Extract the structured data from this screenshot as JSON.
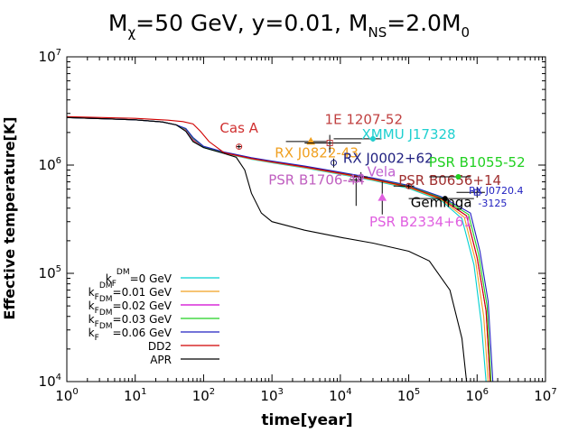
{
  "chart_data": {
    "type": "line",
    "title": {
      "parts": [
        {
          "t": "M",
          "s": "n"
        },
        {
          "t": "χ",
          "s": "sub"
        },
        {
          "t": "=50 GeV, y=0.01, M",
          "s": "n"
        },
        {
          "t": "NS",
          "s": "sub"
        },
        {
          "t": "=2.0M",
          "s": "n"
        },
        {
          "t": "0",
          "s": "sub"
        }
      ]
    },
    "xlabel": "time[year]",
    "ylabel": "Effective temperature[K]",
    "x_scale": "log",
    "y_scale": "log",
    "xlim": [
      1,
      10000000
    ],
    "ylim": [
      10000,
      10000000
    ],
    "x_ticks": [
      {
        "v": 1,
        "base": "10",
        "exp": "0"
      },
      {
        "v": 10,
        "base": "10",
        "exp": "1"
      },
      {
        "v": 100,
        "base": "10",
        "exp": "2"
      },
      {
        "v": 1000,
        "base": "10",
        "exp": "3"
      },
      {
        "v": 10000,
        "base": "10",
        "exp": "4"
      },
      {
        "v": 100000,
        "base": "10",
        "exp": "5"
      },
      {
        "v": 1000000,
        "base": "10",
        "exp": "6"
      },
      {
        "v": 10000000,
        "base": "10",
        "exp": "7"
      }
    ],
    "y_ticks": [
      {
        "v": 10000,
        "base": "10",
        "exp": "4"
      },
      {
        "v": 100000,
        "base": "10",
        "exp": "5"
      },
      {
        "v": 1000000,
        "base": "10",
        "exp": "6"
      },
      {
        "v": 10000000,
        "base": "10",
        "exp": "7"
      }
    ],
    "series": [
      {
        "name_main": "k",
        "name_sub": "F",
        "name_sup": "DM",
        "name_rest": "=0 GeV",
        "color": "#00d0d0",
        "points": [
          [
            1,
            2750000
          ],
          [
            10,
            2620000
          ],
          [
            25,
            2500000
          ],
          [
            40,
            2350000
          ],
          [
            55,
            2050000
          ],
          [
            70,
            1650000
          ],
          [
            100,
            1450000
          ],
          [
            200,
            1280000
          ],
          [
            500,
            1130000
          ],
          [
            1000,
            1050000
          ],
          [
            3000,
            940000
          ],
          [
            10000,
            820000
          ],
          [
            30000,
            720000
          ],
          [
            100000,
            610000
          ],
          [
            300000,
            470000
          ],
          [
            600000,
            320000
          ],
          [
            900000,
            120000
          ],
          [
            1150000,
            35000
          ],
          [
            1350000,
            10000
          ]
        ]
      },
      {
        "name_main": "k",
        "name_sub": "F",
        "name_sup": "DM",
        "name_rest": "=0.01 GeV",
        "color": "#f0a020",
        "points": [
          [
            1,
            2750000
          ],
          [
            10,
            2620000
          ],
          [
            25,
            2500000
          ],
          [
            40,
            2350000
          ],
          [
            55,
            2080000
          ],
          [
            70,
            1680000
          ],
          [
            100,
            1460000
          ],
          [
            200,
            1290000
          ],
          [
            500,
            1140000
          ],
          [
            1000,
            1060000
          ],
          [
            3000,
            950000
          ],
          [
            10000,
            830000
          ],
          [
            30000,
            730000
          ],
          [
            100000,
            620000
          ],
          [
            300000,
            480000
          ],
          [
            650000,
            330000
          ],
          [
            950000,
            130000
          ],
          [
            1250000,
            40000
          ],
          [
            1450000,
            10000
          ]
        ]
      },
      {
        "name_main": "k",
        "name_sub": "F",
        "name_sup": "DM",
        "name_rest": "=0.02 GeV",
        "color": "#d000d0",
        "points": [
          [
            1,
            2750000
          ],
          [
            10,
            2620000
          ],
          [
            25,
            2500000
          ],
          [
            40,
            2350000
          ],
          [
            55,
            2120000
          ],
          [
            70,
            1720000
          ],
          [
            100,
            1470000
          ],
          [
            200,
            1300000
          ],
          [
            500,
            1150000
          ],
          [
            1000,
            1070000
          ],
          [
            3000,
            960000
          ],
          [
            10000,
            840000
          ],
          [
            30000,
            740000
          ],
          [
            100000,
            630000
          ],
          [
            300000,
            490000
          ],
          [
            700000,
            340000
          ],
          [
            1000000,
            140000
          ],
          [
            1350000,
            45000
          ],
          [
            1550000,
            10000
          ]
        ]
      },
      {
        "name_main": "k",
        "name_sub": "F",
        "name_sup": "DM",
        "name_rest": "=0.03 GeV",
        "color": "#20d020",
        "points": [
          [
            1,
            2750000
          ],
          [
            10,
            2620000
          ],
          [
            25,
            2500000
          ],
          [
            40,
            2350000
          ],
          [
            55,
            2150000
          ],
          [
            70,
            1760000
          ],
          [
            100,
            1480000
          ],
          [
            200,
            1310000
          ],
          [
            500,
            1160000
          ],
          [
            1000,
            1080000
          ],
          [
            3000,
            970000
          ],
          [
            10000,
            850000
          ],
          [
            30000,
            750000
          ],
          [
            100000,
            640000
          ],
          [
            300000,
            500000
          ],
          [
            750000,
            350000
          ],
          [
            1050000,
            150000
          ],
          [
            1400000,
            50000
          ],
          [
            1600000,
            10000
          ]
        ]
      },
      {
        "name_main": "k",
        "name_sub": "F",
        "name_sup": "DM",
        "name_rest": "=0.06 GeV",
        "color": "#2020c0",
        "points": [
          [
            1,
            2750000
          ],
          [
            10,
            2620000
          ],
          [
            25,
            2500000
          ],
          [
            40,
            2350000
          ],
          [
            55,
            2180000
          ],
          [
            70,
            1800000
          ],
          [
            100,
            1490000
          ],
          [
            200,
            1320000
          ],
          [
            500,
            1170000
          ],
          [
            1000,
            1090000
          ],
          [
            3000,
            980000
          ],
          [
            10000,
            860000
          ],
          [
            30000,
            760000
          ],
          [
            100000,
            650000
          ],
          [
            300000,
            510000
          ],
          [
            800000,
            360000
          ],
          [
            1100000,
            160000
          ],
          [
            1450000,
            55000
          ],
          [
            1700000,
            10000
          ]
        ]
      },
      {
        "name_main": "DD2",
        "name_sub": "",
        "name_sup": "",
        "name_rest": "",
        "color": "#d00000",
        "points": [
          [
            1,
            2800000
          ],
          [
            10,
            2700000
          ],
          [
            30,
            2600000
          ],
          [
            50,
            2520000
          ],
          [
            70,
            2400000
          ],
          [
            90,
            2050000
          ],
          [
            120,
            1650000
          ],
          [
            200,
            1300000
          ],
          [
            500,
            1150000
          ],
          [
            1000,
            1070000
          ],
          [
            3000,
            960000
          ],
          [
            10000,
            840000
          ],
          [
            30000,
            740000
          ],
          [
            100000,
            630000
          ],
          [
            300000,
            490000
          ],
          [
            700000,
            340000
          ],
          [
            1000000,
            140000
          ],
          [
            1350000,
            45000
          ],
          [
            1550000,
            10000
          ]
        ]
      },
      {
        "name_main": "APR",
        "name_sub": "",
        "name_sup": "",
        "name_rest": "",
        "color": "#000000",
        "points": [
          [
            1,
            2750000
          ],
          [
            10,
            2620000
          ],
          [
            25,
            2500000
          ],
          [
            40,
            2350000
          ],
          [
            55,
            2050000
          ],
          [
            70,
            1650000
          ],
          [
            100,
            1450000
          ],
          [
            200,
            1280000
          ],
          [
            300,
            1180000
          ],
          [
            400,
            900000
          ],
          [
            500,
            550000
          ],
          [
            700,
            360000
          ],
          [
            1000,
            300000
          ],
          [
            3000,
            250000
          ],
          [
            10000,
            215000
          ],
          [
            30000,
            190000
          ],
          [
            100000,
            160000
          ],
          [
            200000,
            130000
          ],
          [
            400000,
            70000
          ],
          [
            600000,
            25000
          ],
          [
            700000,
            10000
          ]
        ]
      }
    ],
    "observations": [
      {
        "name": "Cas A",
        "color": "#d03030",
        "x": 330,
        "y": 1480000,
        "xerr": [
          300,
          360
        ],
        "yerr": [
          1420000,
          1540000
        ],
        "marker": "circle",
        "label_xy": [
          330,
          2000000
        ]
      },
      {
        "name": "RX J0822-43",
        "color": "#f0a020",
        "x": 3700,
        "y": 1650000,
        "xerr": [
          1600,
          6500
        ],
        "yerr": [
          1550000,
          1750000
        ],
        "marker": "triangle",
        "label_xy": [
          4500,
          1180000
        ]
      },
      {
        "name": "1E 1207-52",
        "color": "#c04040",
        "x": 7000,
        "y": 1600000,
        "xerr": [
          3000,
          20000
        ],
        "yerr": [
          1300000,
          1900000
        ],
        "marker": "square",
        "label_xy": [
          22000,
          2400000
        ]
      },
      {
        "name": "XMMU J17328",
        "color": "#20d0d0",
        "x": 30000,
        "y": 1750000,
        "xerr": [
          8000,
          40000
        ],
        "yerr": [
          1650000,
          1850000
        ],
        "marker": "dot",
        "label_xy": [
          100000,
          1750000
        ]
      },
      {
        "name": "RX J0002+62",
        "color": "#202080",
        "x": 8000,
        "y": 1050000,
        "xerr": [
          8000,
          8000
        ],
        "yerr": [
          950000,
          1150000
        ],
        "marker": "circle",
        "label_xy": [
          50000,
          1050000
        ]
      },
      {
        "name": "Vela",
        "color": "#c060d0",
        "x": 20000,
        "y": 780000,
        "xerr": [
          15000,
          25000
        ],
        "yerr": [
          700000,
          860000
        ],
        "marker": "circle",
        "label_xy": [
          40000,
          790000
        ]
      },
      {
        "name": "PSR B1706-44",
        "color": "#c060c0",
        "x": 17000,
        "y": 730000,
        "xerr": [
          14000,
          20000
        ],
        "yerr": [
          420000,
          780000
        ],
        "marker": "circle",
        "label_xy": [
          4500,
          660000
        ]
      },
      {
        "name": "PSR B0656+14",
        "color": "#a03030",
        "x": 100000,
        "y": 640000,
        "xerr": [
          60000,
          120000
        ],
        "yerr": [
          600000,
          680000
        ],
        "marker": "circle",
        "label_xy": [
          400000,
          655000
        ]
      },
      {
        "name": "PSR B1055-52",
        "color": "#20d020",
        "x": 530000,
        "y": 780000,
        "xerr": [
          200000,
          800000
        ],
        "yerr": [
          760000,
          800000
        ],
        "marker": "dot",
        "label_xy": [
          1000000,
          960000
        ]
      },
      {
        "name": "RX J0720.4-3125",
        "color": "#2020c0",
        "x": 1000000,
        "y": 560000,
        "xerr": [
          500000,
          1300000
        ],
        "yerr": [
          500000,
          620000
        ],
        "marker": "square",
        "label_xy": [
          1400000,
          540000
        ]
      },
      {
        "name": "Geminga",
        "color": "#000000",
        "x": 340000,
        "y": 490000,
        "xerr": [
          100000,
          900000
        ],
        "yerr": [
          470000,
          510000
        ],
        "marker": "dot",
        "label_xy": [
          300000,
          410000
        ]
      },
      {
        "name": "PSR B2334+61",
        "color": "#e060e0",
        "x": 41000,
        "y": 500000,
        "xerr": [
          41000,
          41000
        ],
        "yerr": [
          350000,
          700000
        ],
        "marker": "triangle",
        "label_xy": [
          150000,
          270000
        ]
      }
    ]
  }
}
